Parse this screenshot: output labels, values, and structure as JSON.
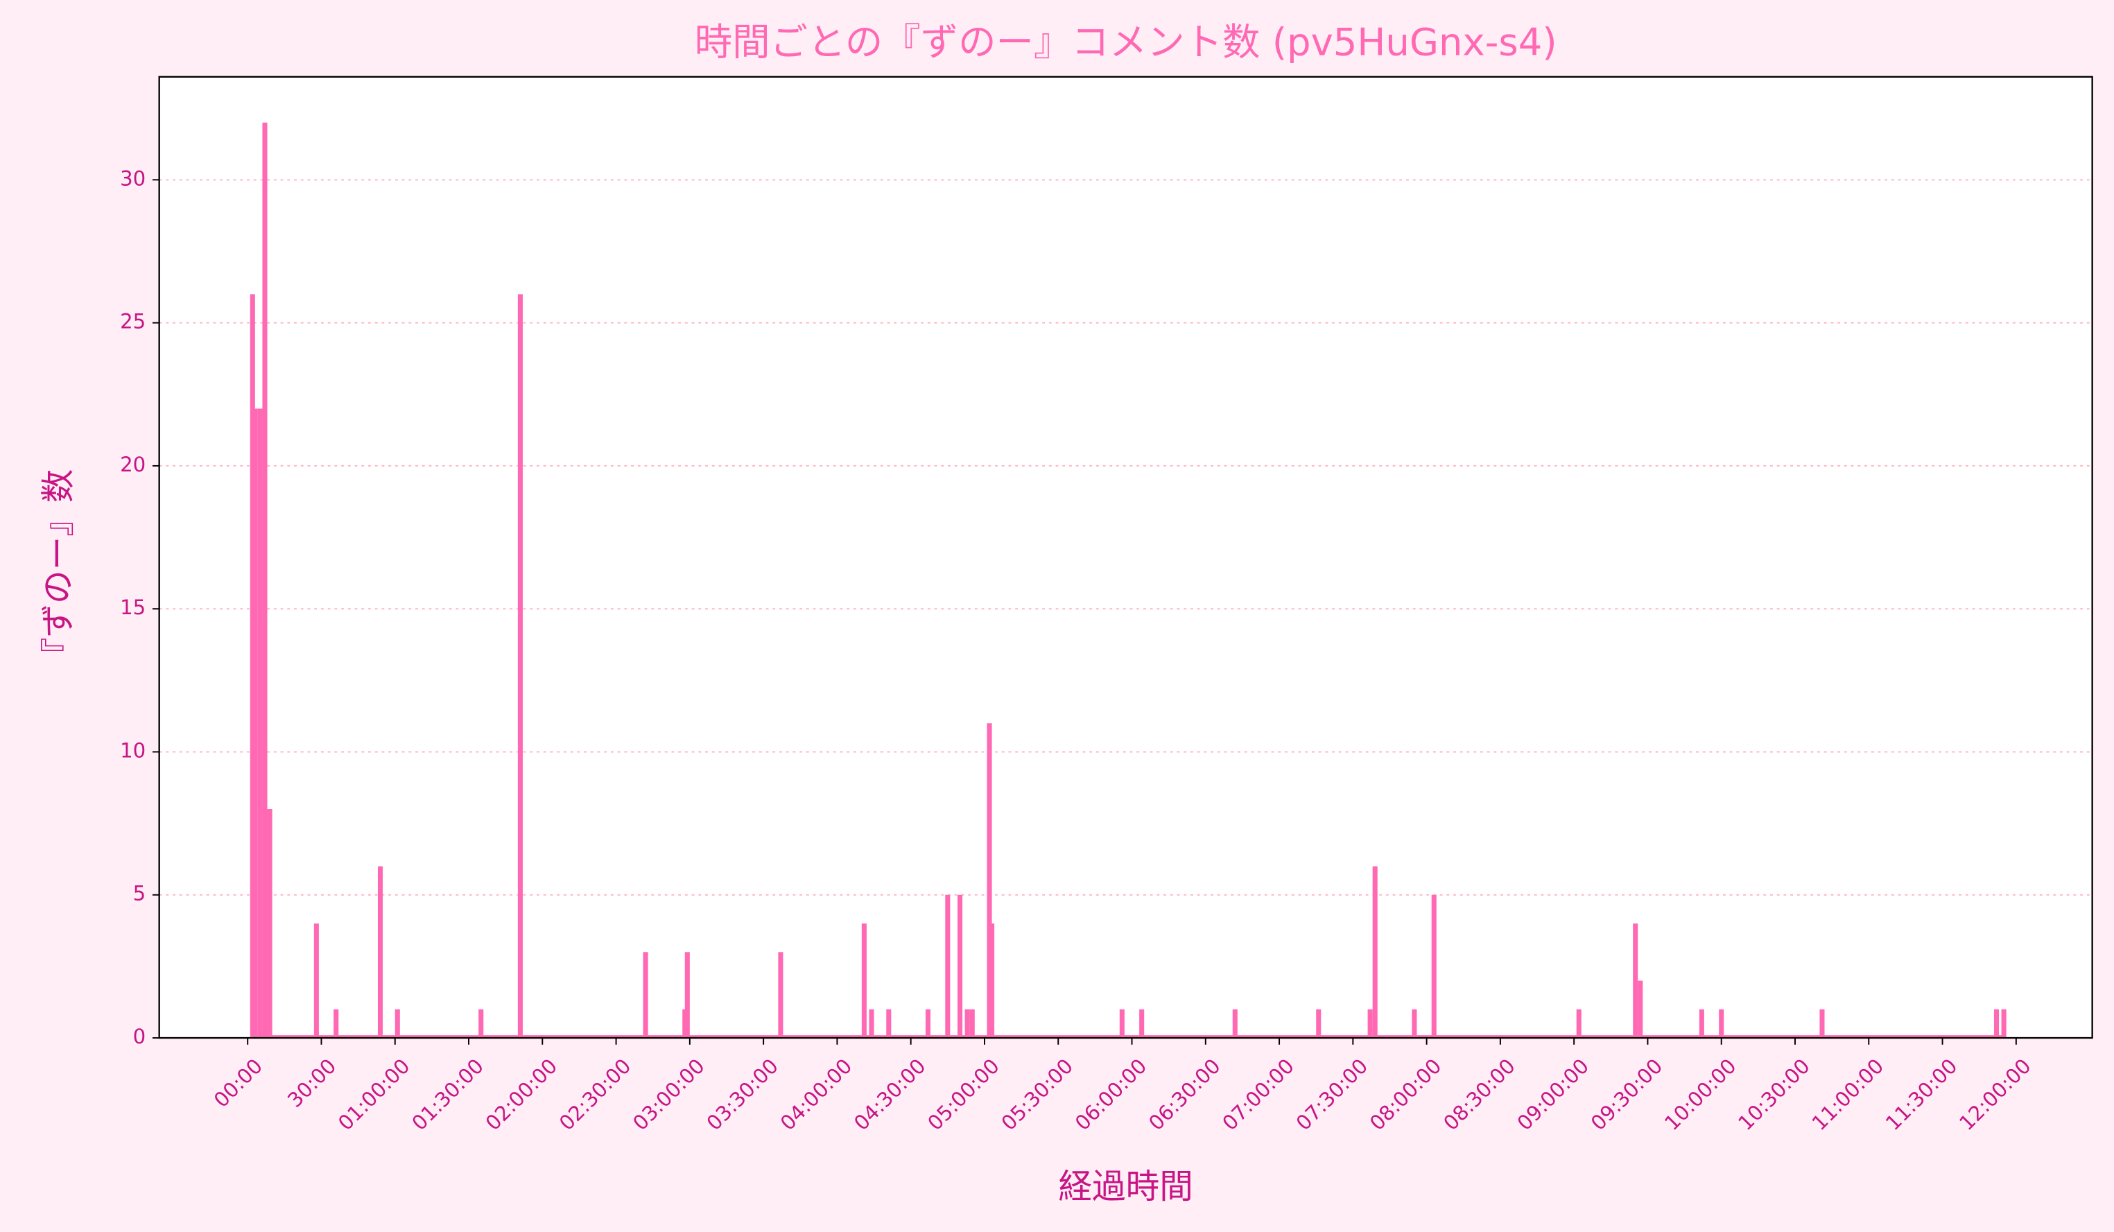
{
  "chart_data": {
    "type": "bar",
    "title": "時間ごとの『ずのー』コメント数 (pv5HuGnx-s4)",
    "x_label": "経過時間",
    "y_label": "『ずのー』数",
    "color": "#ff69b4",
    "x": [
      2,
      3,
      5,
      7,
      9,
      28,
      36,
      54,
      61,
      95,
      111,
      162,
      178,
      179,
      217,
      251,
      254,
      261,
      277,
      285,
      290,
      293,
      295,
      302,
      303,
      356,
      364,
      402,
      436,
      457,
      459,
      475,
      483,
      542,
      565,
      567,
      592,
      600,
      641,
      712,
      715
    ],
    "values": [
      26,
      22,
      22,
      32,
      8,
      4,
      1,
      6,
      1,
      1,
      26,
      3,
      1,
      3,
      3,
      4,
      1,
      1,
      1,
      5,
      5,
      1,
      1,
      11,
      4,
      1,
      1,
      1,
      1,
      1,
      6,
      1,
      5,
      1,
      4,
      2,
      1,
      1,
      1,
      1,
      1
    ],
    "xlim": [
      -36,
      751
    ],
    "ylim": [
      0,
      33.6
    ],
    "yticks": [
      0,
      5,
      10,
      15,
      20,
      25,
      30
    ],
    "xticks": [
      {
        "value": 0,
        "label": "00:00"
      },
      {
        "value": 30,
        "label": "30:00"
      },
      {
        "value": 60,
        "label": "01:00:00"
      },
      {
        "value": 90,
        "label": "01:30:00"
      },
      {
        "value": 120,
        "label": "02:00:00"
      },
      {
        "value": 150,
        "label": "02:30:00"
      },
      {
        "value": 180,
        "label": "03:00:00"
      },
      {
        "value": 210,
        "label": "03:30:00"
      },
      {
        "value": 240,
        "label": "04:00:00"
      },
      {
        "value": 270,
        "label": "04:30:00"
      },
      {
        "value": 300,
        "label": "05:00:00"
      },
      {
        "value": 330,
        "label": "05:30:00"
      },
      {
        "value": 360,
        "label": "06:00:00"
      },
      {
        "value": 390,
        "label": "06:30:00"
      },
      {
        "value": 420,
        "label": "07:00:00"
      },
      {
        "value": 450,
        "label": "07:30:00"
      },
      {
        "value": 480,
        "label": "08:00:00"
      },
      {
        "value": 510,
        "label": "08:30:00"
      },
      {
        "value": 540,
        "label": "09:00:00"
      },
      {
        "value": 570,
        "label": "09:30:00"
      },
      {
        "value": 600,
        "label": "10:00:00"
      },
      {
        "value": 630,
        "label": "10:30:00"
      },
      {
        "value": 660,
        "label": "11:00:00"
      },
      {
        "value": 690,
        "label": "11:30:00"
      },
      {
        "value": 720,
        "label": "12:00:00"
      }
    ],
    "grid": true
  }
}
